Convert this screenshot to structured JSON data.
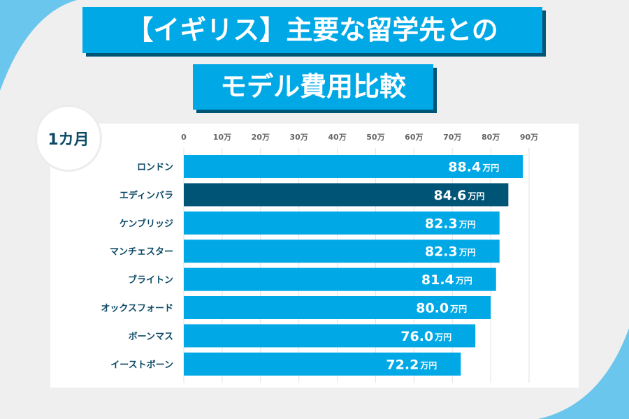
{
  "title": {
    "line1": "【イギリス】主要な留学先との",
    "line2": "モデル費用比較"
  },
  "badge": "1カ月",
  "colors": {
    "bar": "#00a8e6",
    "highlight": "#005476",
    "label": "#0d4a66",
    "tick": "#666666"
  },
  "chart_data": {
    "type": "bar",
    "orientation": "horizontal",
    "categories": [
      "ロンドン",
      "エディンバラ",
      "ケンブリッジ",
      "マンチェスター",
      "ブライトン",
      "オックスフォード",
      "ボーンマス",
      "イーストボーン"
    ],
    "values": [
      88.4,
      84.6,
      82.3,
      82.3,
      81.4,
      80.0,
      76.0,
      72.2
    ],
    "value_labels": [
      "88.4",
      "84.6",
      "82.3",
      "82.3",
      "81.4",
      "80.0",
      "76.0",
      "72.2"
    ],
    "value_unit": "万円",
    "highlight_index": 1,
    "xlim": [
      0,
      90
    ],
    "x_ticks": [
      0,
      10,
      20,
      30,
      40,
      50,
      60,
      70,
      80,
      90
    ],
    "x_tick_labels": [
      "0",
      "10万",
      "20万",
      "30万",
      "40万",
      "50万",
      "60万",
      "70万",
      "80万",
      "90万"
    ],
    "x_axis_position": "top",
    "grid": true
  }
}
